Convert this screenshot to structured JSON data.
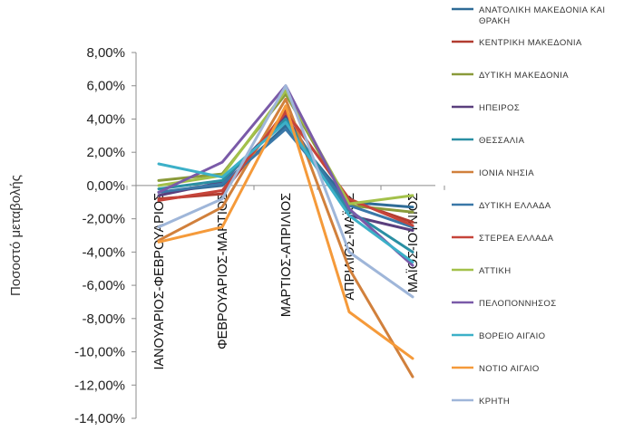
{
  "chart_data": {
    "type": "line",
    "ylabel": "Ποσοστό μεταβολής",
    "xlabel": "",
    "ylim": [
      -0.14,
      0.08
    ],
    "yticks": [
      0.08,
      0.06,
      0.04,
      0.02,
      0,
      -0.02,
      -0.04,
      -0.06,
      -0.08,
      -0.1,
      -0.12,
      -0.14
    ],
    "ytick_labels": [
      "8,00%",
      "6,00%",
      "4,00%",
      "2,00%",
      "0,00%",
      "-2,00%",
      "-4,00%",
      "-6,00%",
      "-8,00%",
      "-10,00%",
      "-12,00%",
      "-14,00%"
    ],
    "categories": [
      "ΙΑΝΟΥΑΡΙΟΣ-ΦΕΒΡΟΥΑΡΙΟΣ",
      "ΦΕΒΡΟΥΑΡΙΟΣ-ΜΑΡΤΙΟΣ",
      "ΜΑΡΤΙΟΣ-ΑΠΡΙΛΙΟΣ",
      "ΑΠΡΙΛΙΟΣ-ΜΑΪΟΣ",
      "ΜΑΪΟΣ-ΙΟΥΝΙΟΣ"
    ],
    "grid": false,
    "legend": "right",
    "series": [
      {
        "name": "ΑΝΑΤΟΛΙΚΗ ΜΑΚΕΔΟΝΙΑ ΚΑΙ ΘΡΑΚΗ",
        "color": "#2e6b96",
        "values": [
          -0.004,
          0.0,
          0.036,
          -0.01,
          -0.013
        ]
      },
      {
        "name": "ΚΕΝΤΡΙΚΗ ΜΑΚΕΔΟΝΙΑ",
        "color": "#b23c30",
        "values": [
          -0.008,
          -0.005,
          0.045,
          -0.009,
          -0.022
        ]
      },
      {
        "name": "ΔΥΤΙΚΗ ΜΑΚΕΔΟΝΙΑ",
        "color": "#8a9a3a",
        "values": [
          0.003,
          0.007,
          0.055,
          -0.012,
          -0.016
        ]
      },
      {
        "name": "ΗΠΕΙΡΟΣ",
        "color": "#5a3f7d",
        "values": [
          -0.006,
          0.002,
          0.042,
          -0.018,
          -0.027
        ]
      },
      {
        "name": "ΘΕΣΣΑΛΙΑ",
        "color": "#2a8fa3",
        "values": [
          -0.002,
          0.003,
          0.04,
          -0.015,
          -0.04
        ]
      },
      {
        "name": "ΙΟΝΙΑ ΝΗΣΙΑ",
        "color": "#d1803c",
        "values": [
          -0.033,
          -0.013,
          0.052,
          -0.05,
          -0.115
        ]
      },
      {
        "name": "ΔΥΤΙΚΗ ΕΛΛΑΔΑ",
        "color": "#3a78a8",
        "values": [
          -0.004,
          0.001,
          0.034,
          -0.012,
          -0.025
        ]
      },
      {
        "name": "ΣΤΕΡΕΑ ΕΛΛΑΔΑ",
        "color": "#c6443a",
        "values": [
          -0.009,
          -0.003,
          0.044,
          -0.008,
          -0.024
        ]
      },
      {
        "name": "ΑΤΤΙΚΗ",
        "color": "#a3c14a",
        "values": [
          0.0,
          0.006,
          0.057,
          -0.011,
          -0.006
        ]
      },
      {
        "name": "ΠΕΛΟΠΟΝΝΗΣΟΣ",
        "color": "#7a5aa8",
        "values": [
          -0.004,
          0.014,
          0.06,
          -0.014,
          -0.048
        ]
      },
      {
        "name": "ΒΟΡΕΙΟ ΑΙΓΑΙΟ",
        "color": "#3cb0c8",
        "values": [
          0.013,
          0.005,
          0.038,
          -0.018,
          -0.046
        ]
      },
      {
        "name": "ΝΟΤΙΟ ΑΙΓΑΙΟ",
        "color": "#f59a3a",
        "values": [
          -0.034,
          -0.025,
          0.048,
          -0.076,
          -0.104
        ]
      },
      {
        "name": "ΚΡΗΤΗ",
        "color": "#9fb6d9",
        "values": [
          -0.025,
          -0.008,
          0.06,
          -0.04,
          -0.067
        ]
      }
    ]
  }
}
